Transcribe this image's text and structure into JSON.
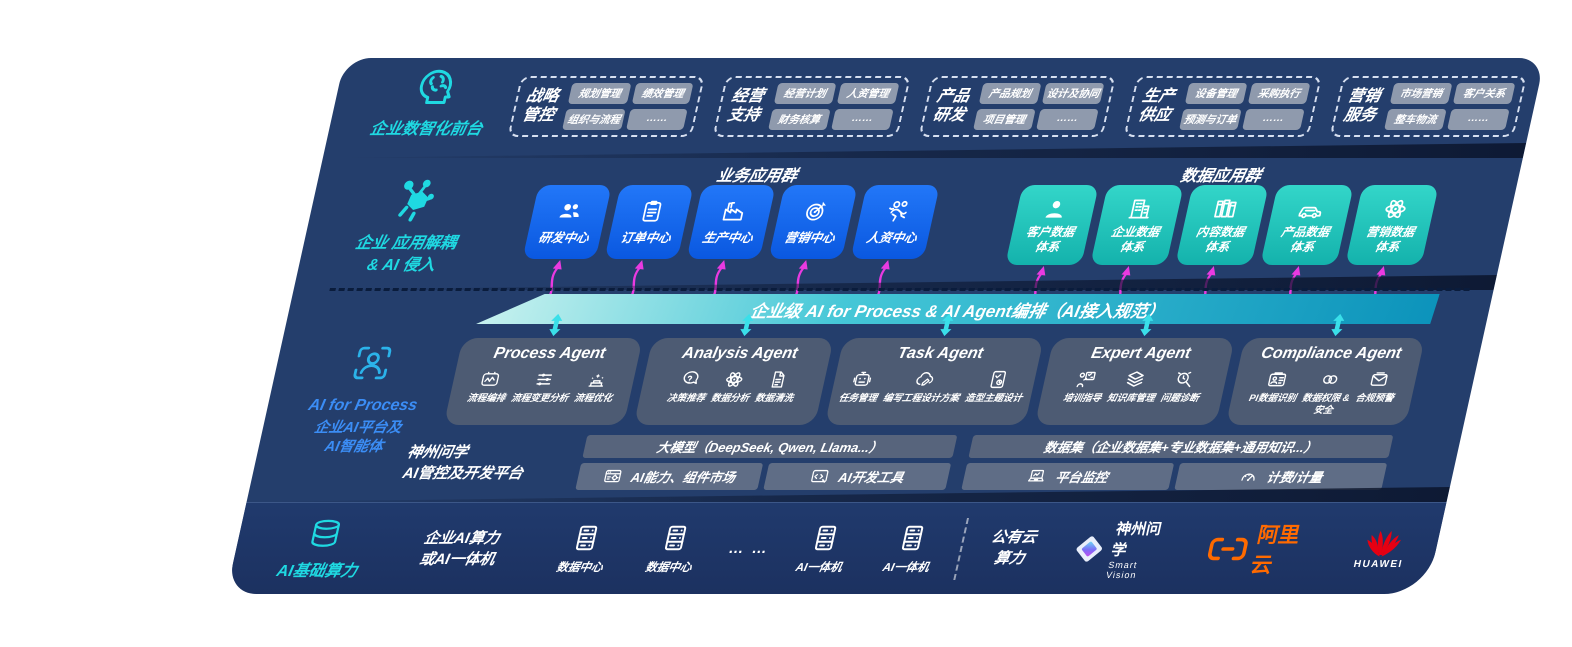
{
  "colors": {
    "panel_navy": "#243e6c",
    "bottom_navy": "#1c3160",
    "teal_accent": "#1fd9e2",
    "app_blue": "#1568ec",
    "data_teal": "#24c9bd",
    "banner_teal": "#0c93bb",
    "arrow_magenta": "#e93ae1",
    "aliyun_orange": "#ff6a00",
    "huawei_red": "#e60012",
    "ai_blue": "#3b8df5"
  },
  "front": {
    "label": "企业数智化前台",
    "icon": "brain-circuit",
    "groups": [
      {
        "title": "战略管控",
        "items": [
          "规划管理",
          "绩效管理",
          "组织与流程",
          "……"
        ]
      },
      {
        "title": "经营支持",
        "items": [
          "经营计划",
          "人资管理",
          "财务核算",
          "……"
        ]
      },
      {
        "title": "产品研发",
        "items": [
          "产品规划",
          "设计及协同",
          "项目管理",
          "……"
        ]
      },
      {
        "title": "生产供应",
        "items": [
          "设备管理",
          "采购执行",
          "预测与订单",
          "……"
        ]
      },
      {
        "title": "营销服务",
        "items": [
          "市场营销",
          "客户关系",
          "整车物流",
          "……"
        ]
      }
    ]
  },
  "apps": {
    "label_line1": "企业 应用解耦",
    "label_line2": "& AI 侵入",
    "icon": "molecule",
    "business_group_title": "业务应用群",
    "data_group_title": "数据应用群",
    "business_apps": [
      {
        "label": "研发中心",
        "icon": "users"
      },
      {
        "label": "订单中心",
        "icon": "clipboard-order"
      },
      {
        "label": "生产中心",
        "icon": "factory"
      },
      {
        "label": "营销中心",
        "icon": "target"
      },
      {
        "label": "人资中心",
        "icon": "people-hr"
      }
    ],
    "data_apps": [
      {
        "label": "客户数据体系",
        "icon": "person"
      },
      {
        "label": "企业数据体系",
        "icon": "building"
      },
      {
        "label": "内容数据体系",
        "icon": "files"
      },
      {
        "label": "产品数据体系",
        "icon": "car"
      },
      {
        "label": "营销数据体系",
        "icon": "atom"
      }
    ]
  },
  "ai_layer": {
    "banner": "企业级 AI for Process & AI Agent编排（AI接入规范）",
    "label_title": "AI for Process",
    "label_line2": "企业AI平台及",
    "label_line3": "AI智能体",
    "icon": "scan-person",
    "agents": [
      {
        "title": "Process Agent",
        "items": [
          {
            "label": "流程编排",
            "icon": "waveform-box"
          },
          {
            "label": "流程变更分析",
            "icon": "flow-sliders"
          },
          {
            "label": "流程优化",
            "icon": "layer-optimize"
          }
        ]
      },
      {
        "title": "Analysis Agent",
        "items": [
          {
            "label": "决策推荐",
            "icon": "chat-decision"
          },
          {
            "label": "数据分析",
            "icon": "atom"
          },
          {
            "label": "数据清洗",
            "icon": "doc-clean"
          }
        ]
      },
      {
        "title": "Task Agent",
        "items": [
          {
            "label": "任务管理",
            "icon": "robot-grid"
          },
          {
            "label": "编写工程设计方案",
            "icon": "cloud-edit"
          },
          {
            "label": "造型主题设计",
            "icon": "tablet-design"
          }
        ]
      },
      {
        "title": "Expert Agent",
        "items": [
          {
            "label": "培训指导",
            "icon": "mentor-board"
          },
          {
            "label": "知识库管理",
            "icon": "layers-knowledge"
          },
          {
            "label": "问题诊断",
            "icon": "diagnose-search"
          }
        ]
      },
      {
        "title": "Compliance Agent",
        "items": [
          {
            "label": "PI数据识别",
            "icon": "id-card"
          },
          {
            "label": "数据权限 &\n安全",
            "icon": "link-secure"
          },
          {
            "label": "合规预警",
            "icon": "mail-alert"
          }
        ]
      }
    ],
    "platform": {
      "label_line1": "神州问学",
      "label_line2": "AI管控及开发平台",
      "model_bar": "大模型（DeepSeek, Qwen, Llama...）",
      "left_bars": [
        {
          "label": "AI能力、组件市场",
          "icon": "window-gear"
        },
        {
          "label": "AI开发工具",
          "icon": "code-window"
        }
      ],
      "dataset_bar": "数据集（企业数据集+专业数据集+通用知识...）",
      "right_bars": [
        {
          "label": "平台监控",
          "icon": "laptop-monitor"
        },
        {
          "label": "计费/计量",
          "icon": "gauge"
        }
      ]
    }
  },
  "compute": {
    "label": "AI基础算力",
    "icon": "database",
    "cluster_line1": "企业AI算力",
    "cluster_line2": "或AI一体机",
    "servers": [
      {
        "label": "数据中心",
        "icon": "server-rack"
      },
      {
        "label": "数据中心",
        "icon": "server-rack"
      },
      {
        "label": "AI一体机",
        "icon": "server-rack"
      },
      {
        "label": "AI一体机",
        "icon": "server-rack"
      }
    ],
    "ellipsis": "… …",
    "public_cloud_line1": "公有云",
    "public_cloud_line2": "算力",
    "logos": {
      "smartvision": {
        "cn": "神州问学",
        "en": "Smart Vision",
        "icon": "diamond-logo"
      },
      "aliyun": {
        "text": "阿里云",
        "icon": "aliyun-logo"
      },
      "huawei": {
        "text": "HUAWEI",
        "icon": "huawei-logo"
      }
    }
  }
}
